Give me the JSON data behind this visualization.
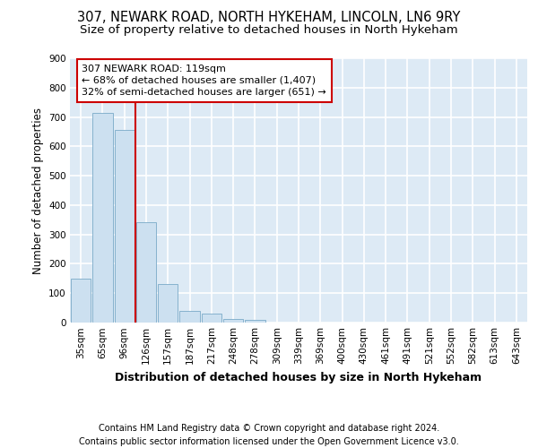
{
  "title1": "307, NEWARK ROAD, NORTH HYKEHAM, LINCOLN, LN6 9RY",
  "title2": "Size of property relative to detached houses in North Hykeham",
  "xlabel": "Distribution of detached houses by size in North Hykeham",
  "ylabel": "Number of detached properties",
  "categories": [
    "35sqm",
    "65sqm",
    "96sqm",
    "126sqm",
    "157sqm",
    "187sqm",
    "217sqm",
    "248sqm",
    "278sqm",
    "309sqm",
    "339sqm",
    "369sqm",
    "400sqm",
    "430sqm",
    "461sqm",
    "491sqm",
    "521sqm",
    "552sqm",
    "582sqm",
    "613sqm",
    "643sqm"
  ],
  "values": [
    150,
    715,
    655,
    342,
    130,
    40,
    30,
    12,
    10,
    0,
    0,
    0,
    0,
    0,
    0,
    0,
    0,
    0,
    0,
    0,
    0
  ],
  "bar_color": "#cce0f0",
  "bar_edge_color": "#7aaac8",
  "vline_x": 2.5,
  "vline_color": "#cc0000",
  "annotation_text": "307 NEWARK ROAD: 119sqm\n← 68% of detached houses are smaller (1,407)\n32% of semi-detached houses are larger (651) →",
  "annotation_box_facecolor": "white",
  "annotation_box_edgecolor": "#cc0000",
  "ylim": [
    0,
    900
  ],
  "yticks": [
    0,
    100,
    200,
    300,
    400,
    500,
    600,
    700,
    800,
    900
  ],
  "footer": "Contains HM Land Registry data © Crown copyright and database right 2024.\nContains public sector information licensed under the Open Government Licence v3.0.",
  "bg_color": "#ddeaf5",
  "grid_color": "#ffffff",
  "title1_fontsize": 10.5,
  "title2_fontsize": 9.5,
  "xlabel_fontsize": 9,
  "ylabel_fontsize": 8.5,
  "tick_fontsize": 7.5,
  "annot_fontsize": 8,
  "footer_fontsize": 7
}
